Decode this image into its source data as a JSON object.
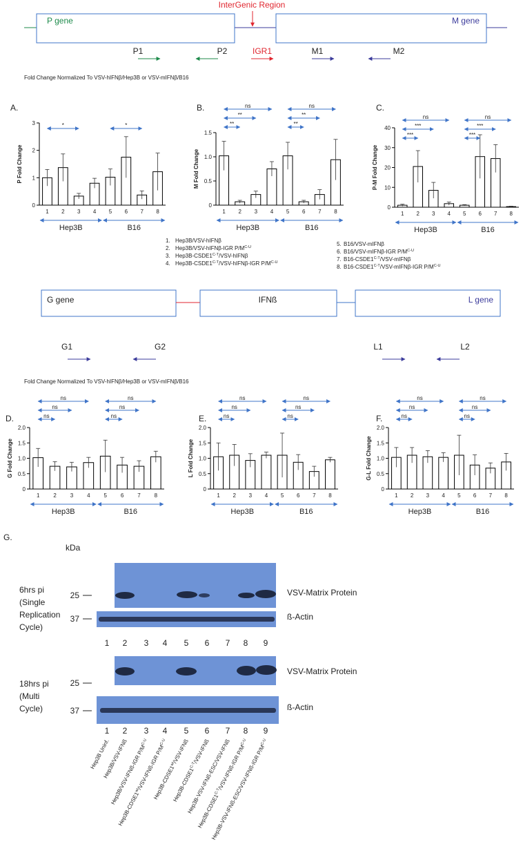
{
  "diagram_top": {
    "region_label": "InterGenic Region",
    "genes": [
      "P gene",
      "M gene"
    ],
    "primers": [
      "P1",
      "P2",
      "IGR1",
      "M1",
      "M2"
    ],
    "caption": "Fold Change Normalized To VSV-hIFNβ/Hep3B or VSV-mIFNβ/B16"
  },
  "chart_data": [
    {
      "type": "bar",
      "panel": "A.",
      "ylabel": "P Fold Change",
      "categories": [
        "1",
        "2",
        "3",
        "4",
        "5",
        "6",
        "7",
        "8"
      ],
      "groups": [
        "Hep3B",
        "B16"
      ],
      "values": [
        1.0,
        1.37,
        0.33,
        0.8,
        1.02,
        1.75,
        0.37,
        1.22
      ],
      "errors": [
        0.3,
        0.5,
        0.1,
        0.18,
        0.3,
        0.75,
        0.15,
        0.68
      ],
      "ylim": [
        0,
        3
      ],
      "yticks": [
        0,
        1,
        2,
        3
      ],
      "bar_color": "#ffffff",
      "bracket_color": "#3f74c8",
      "comparisons": [
        {
          "from": "1",
          "to": "3",
          "label": "*"
        },
        {
          "from": "5",
          "to": "7",
          "label": "*"
        }
      ]
    },
    {
      "type": "bar",
      "panel": "B.",
      "ylabel": "M Fold Change",
      "categories": [
        "1",
        "2",
        "3",
        "4",
        "5",
        "6",
        "7",
        "8"
      ],
      "groups": [
        "Hep3B",
        "B16"
      ],
      "values": [
        1.02,
        0.07,
        0.22,
        0.75,
        1.02,
        0.07,
        0.22,
        0.94
      ],
      "errors": [
        0.3,
        0.03,
        0.07,
        0.15,
        0.28,
        0.03,
        0.1,
        0.42
      ],
      "ylim": [
        0,
        1.5
      ],
      "yticks": [
        0,
        0.5,
        {
          "value": 1,
          "label": "1.0"
        },
        1.5
      ],
      "bar_color": "#ffffff",
      "bracket_color": "#3f74c8",
      "comparisons": [
        {
          "from": "1",
          "to": "2",
          "label": "**"
        },
        {
          "from": "1",
          "to": "3",
          "label": "**"
        },
        {
          "from": "1",
          "to": "4",
          "label": "ns"
        },
        {
          "from": "5",
          "to": "6",
          "label": "**"
        },
        {
          "from": "5",
          "to": "7",
          "label": "**"
        },
        {
          "from": "5",
          "to": "8",
          "label": "ns"
        }
      ]
    },
    {
      "type": "bar",
      "panel": "C.",
      "ylabel": "P-M Fold Change",
      "categories": [
        "1",
        "2",
        "3",
        "4",
        "5",
        "6",
        "7",
        "8"
      ],
      "groups": [
        "Hep3B",
        "B16"
      ],
      "values": [
        1,
        20.5,
        8.5,
        1.8,
        1,
        25.5,
        24.5,
        0.3
      ],
      "errors": [
        0.5,
        8,
        4,
        0.8,
        0.3,
        11,
        7,
        0.2
      ],
      "ylim": [
        0,
        40
      ],
      "yticks": [
        0,
        10,
        20,
        30,
        40
      ],
      "bar_color": "#ffffff",
      "bracket_color": "#3f74c8",
      "comparisons": [
        {
          "from": "1",
          "to": "2",
          "label": "***"
        },
        {
          "from": "1",
          "to": "3",
          "label": "***"
        },
        {
          "from": "1",
          "to": "4",
          "label": "ns"
        },
        {
          "from": "5",
          "to": "6",
          "label": "***"
        },
        {
          "from": "5",
          "to": "7",
          "label": "***"
        },
        {
          "from": "5",
          "to": "8",
          "label": "ns"
        }
      ]
    },
    {
      "type": "bar",
      "panel": "D.",
      "ylabel": "G Fold Change",
      "categories": [
        "1",
        "2",
        "3",
        "4",
        "5",
        "6",
        "7",
        "8"
      ],
      "groups": [
        "Hep3B",
        "B16"
      ],
      "values": [
        1.02,
        0.74,
        0.72,
        0.86,
        1.07,
        0.78,
        0.74,
        1.05
      ],
      "errors": [
        0.3,
        0.15,
        0.15,
        0.17,
        0.52,
        0.25,
        0.18,
        0.18
      ],
      "ylim": [
        0,
        2
      ],
      "yticks": [
        0,
        0.5,
        {
          "value": 1,
          "label": "1.0"
        },
        1.5,
        {
          "value": 2,
          "label": "2.0"
        }
      ],
      "bar_color": "#ffffff",
      "bracket_color": "#3f74c8",
      "comparisons": [
        {
          "from": "1",
          "to": "2",
          "label": "ns"
        },
        {
          "from": "1",
          "to": "3",
          "label": "ns"
        },
        {
          "from": "1",
          "to": "4",
          "label": "ns"
        },
        {
          "from": "5",
          "to": "6",
          "label": "ns"
        },
        {
          "from": "5",
          "to": "7",
          "label": "ns"
        },
        {
          "from": "5",
          "to": "8",
          "label": "ns"
        }
      ]
    },
    {
      "type": "bar",
      "panel": "E.",
      "ylabel": "L Fold Change",
      "categories": [
        "1",
        "2",
        "3",
        "4",
        "5",
        "6",
        "7",
        "8"
      ],
      "groups": [
        "Hep3B",
        "B16"
      ],
      "values": [
        1.05,
        1.1,
        0.93,
        1.1,
        1.1,
        0.87,
        0.57,
        0.95
      ],
      "errors": [
        0.45,
        0.35,
        0.22,
        0.1,
        0.72,
        0.25,
        0.17,
        0.08
      ],
      "ylim": [
        0,
        2
      ],
      "yticks": [
        0,
        0.5,
        {
          "value": 1,
          "label": "1.0"
        },
        1.5,
        {
          "value": 2,
          "label": "2.0"
        }
      ],
      "bar_color": "#ffffff",
      "bracket_color": "#3f74c8",
      "comparisons": [
        {
          "from": "1",
          "to": "2",
          "label": "ns"
        },
        {
          "from": "1",
          "to": "3",
          "label": "ns"
        },
        {
          "from": "1",
          "to": "4",
          "label": "ns"
        },
        {
          "from": "5",
          "to": "6",
          "label": "ns"
        },
        {
          "from": "5",
          "to": "7",
          "label": "ns"
        },
        {
          "from": "5",
          "to": "8",
          "label": "ns"
        }
      ]
    },
    {
      "type": "bar",
      "panel": "F.",
      "ylabel": "G-L Fold Change",
      "categories": [
        "1",
        "2",
        "3",
        "4",
        "5",
        "6",
        "7",
        "8"
      ],
      "groups": [
        "Hep3B",
        "B16"
      ],
      "values": [
        1.03,
        1.1,
        1.05,
        1.03,
        1.1,
        0.78,
        0.68,
        0.88
      ],
      "errors": [
        0.32,
        0.25,
        0.2,
        0.15,
        0.65,
        0.33,
        0.17,
        0.28
      ],
      "ylim": [
        0,
        2
      ],
      "yticks": [
        0,
        0.5,
        {
          "value": 1,
          "label": "1.0"
        },
        1.5,
        {
          "value": 2,
          "label": "2.0"
        }
      ],
      "bar_color": "#ffffff",
      "bracket_color": "#3f74c8",
      "comparisons": [
        {
          "from": "1",
          "to": "2",
          "label": "ns"
        },
        {
          "from": "1",
          "to": "3",
          "label": "ns"
        },
        {
          "from": "1",
          "to": "4",
          "label": "ns"
        },
        {
          "from": "5",
          "to": "6",
          "label": "ns"
        },
        {
          "from": "5",
          "to": "7",
          "label": "ns"
        },
        {
          "from": "5",
          "to": "8",
          "label": "ns"
        }
      ]
    }
  ],
  "legend": [
    {
      "number": "1.",
      "parts": [
        {
          "text": "Hep3B/VSV-hIFNβ"
        }
      ]
    },
    {
      "number": "2.",
      "parts": [
        {
          "text": "Hep3B/VSV-hIFNβ-IGR P/M"
        },
        {
          "sup": "C-U"
        }
      ]
    },
    {
      "number": "3.",
      "parts": [
        {
          "text": "Hep3B-CSDE1"
        },
        {
          "sup": "C-T"
        },
        {
          "text": "/VSV-hIFNβ"
        }
      ]
    },
    {
      "number": "4.",
      "parts": [
        {
          "text": "Hep3B-CSDE1"
        },
        {
          "sup": "C-T"
        },
        {
          "text": "/VSV-hIFNβ-IGR P/M"
        },
        {
          "sup": "C-U"
        }
      ]
    },
    {
      "number": "5.",
      "parts": [
        {
          "text": "B16/VSV-mIFNβ"
        }
      ]
    },
    {
      "number": "6.",
      "parts": [
        {
          "text": "B16/VSV-mIFNβ-IGR P/M"
        },
        {
          "sup": "C-U"
        }
      ]
    },
    {
      "number": "7.",
      "parts": [
        {
          "text": "B16-CSDE1"
        },
        {
          "sup": "C-T"
        },
        {
          "text": "/VSV-mIFNβ"
        }
      ]
    },
    {
      "number": "8.",
      "parts": [
        {
          "text": "B16-CSDE1"
        },
        {
          "sup": "C-T"
        },
        {
          "text": "/VSV-mIFNβ-IGR P/M"
        },
        {
          "sup": "C-U"
        }
      ]
    }
  ],
  "diagram_bottom": {
    "genes": [
      "G gene",
      "IFNß",
      "L gene"
    ],
    "primers": [
      "G1",
      "G2",
      "L1",
      "L2"
    ],
    "caption": "Fold Change Normalized To VSV-hIFNβ/Hep3B or VSV-mIFNβ/B16"
  },
  "blot": {
    "panel": "G.",
    "unit": "kDa",
    "lanes": [
      "1",
      "2",
      "3",
      "4",
      "5",
      "6",
      "7",
      "8",
      "9"
    ],
    "blots": [
      {
        "condition": [
          "6hrs pi",
          "(Single",
          "Replication",
          "Cycle)"
        ],
        "rows": [
          {
            "marker": "25",
            "label": "VSV-Matrix Protein"
          },
          {
            "marker": "37",
            "label": "ß-Actin"
          }
        ]
      },
      {
        "condition": [
          "18hrs pi",
          "(Multi",
          "Cycle)"
        ],
        "rows": [
          {
            "marker": "25",
            "label": "VSV-Matrix Protein"
          },
          {
            "marker": "37",
            "label": "ß-Actin"
          }
        ]
      }
    ],
    "lane_labels": [
      [
        {
          "text": "Hep3B Uninf."
        }
      ],
      [
        {
          "text": "Hep3B/VSV-IFNß"
        }
      ],
      [
        {
          "text": "Hep3B/VSV-IFNß-IGR P/M"
        },
        {
          "sup": "C-U"
        }
      ],
      [
        {
          "text": "Hep3B-CDSE1"
        },
        {
          "sup": "wt"
        },
        {
          "text": "/VSV-IFNß-IGR P/M"
        },
        {
          "sup": "C-U"
        }
      ],
      [
        {
          "text": "Hep3B-CDSE1"
        },
        {
          "sup": "wt"
        },
        {
          "text": "/VSV-IFNß"
        }
      ],
      [
        {
          "text": "Hep3B-CDSE1"
        },
        {
          "sup": "C-T"
        },
        {
          "text": "/VSV-IFNß"
        }
      ],
      [
        {
          "text": "Hep3B-VSV-IFNß-ESC/VSV-IFNß"
        }
      ],
      [
        {
          "text": "Hep3B-CDSE1"
        },
        {
          "sup": "C-T"
        },
        {
          "text": "/VSV-IFNß-IGR P/M"
        },
        {
          "sup": "C-U"
        }
      ],
      [
        {
          "text": "Hep3B-VSV-IFNß-ESC/VSV-IFNß-IGR P/M"
        },
        {
          "sup": "C-U"
        }
      ]
    ]
  }
}
